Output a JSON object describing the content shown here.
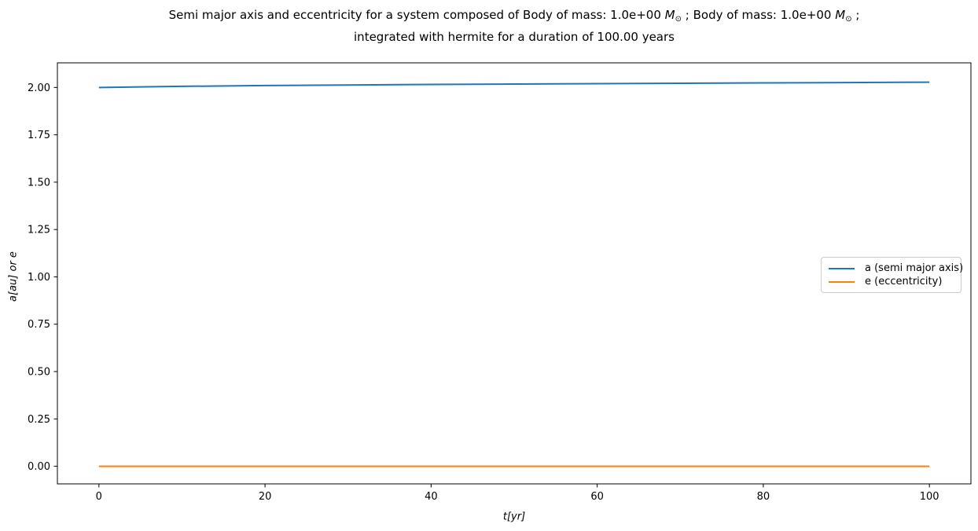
{
  "chart_data": {
    "type": "line",
    "title": "Semi major axis and eccentricity for a system composed of Body of mass: 1.0e+00 M⊙ ; Body of mass: 1.0e+00 M⊙ ; integrated with hermite for a duration of 100.00 years",
    "title_line1": {
      "s1": "Semi major axis and eccentricity for a system composed of Body of mass: 1.0e+00 ",
      "m1": "M",
      "sub1": "⊙",
      "s2": " ; Body of mass: 1.0e+00 ",
      "m2": "M",
      "sub2": "⊙",
      "s3": " ;"
    },
    "title_line2": "integrated with hermite for a duration of 100.00 years",
    "xlabel": "t[yr]",
    "ylabel": "a[au] or e",
    "x": [
      0,
      10,
      20,
      30,
      40,
      50,
      60,
      70,
      80,
      90,
      100
    ],
    "series": [
      {
        "name": "a (semi major axis)",
        "color": "#1f77b4",
        "values": [
          2.0,
          2.006,
          2.01,
          2.013,
          2.016,
          2.018,
          2.02,
          2.022,
          2.024,
          2.026,
          2.028
        ]
      },
      {
        "name": "e (eccentricity)",
        "color": "#ff7f0e",
        "values": [
          0.0,
          0.0,
          0.0,
          0.0,
          0.0,
          0.0,
          0.0,
          0.0,
          0.0,
          0.0,
          0.0
        ]
      }
    ],
    "xlim": [
      -5,
      105
    ],
    "ylim": [
      -0.093,
      2.13
    ],
    "xticks": [
      0,
      20,
      40,
      60,
      80,
      100
    ],
    "xtick_labels": [
      "0",
      "20",
      "40",
      "60",
      "80",
      "100"
    ],
    "yticks": [
      0.0,
      0.25,
      0.5,
      0.75,
      1.0,
      1.25,
      1.5,
      1.75,
      2.0
    ],
    "ytick_labels": [
      "0.00",
      "0.25",
      "0.50",
      "0.75",
      "1.00",
      "1.25",
      "1.50",
      "1.75",
      "2.00"
    ],
    "grid": false,
    "legend_position": "center right"
  }
}
